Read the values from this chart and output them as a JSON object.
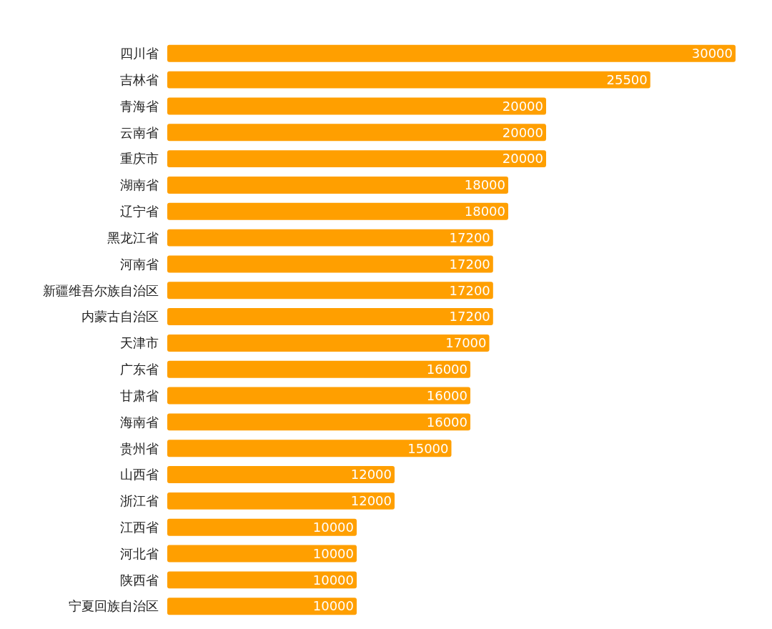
{
  "chart_data": {
    "type": "bar",
    "orientation": "horizontal",
    "categories": [
      "四川省",
      "吉林省",
      "青海省",
      "云南省",
      "重庆市",
      "湖南省",
      "辽宁省",
      "黑龙江省",
      "河南省",
      "新疆维吾尔族自治区",
      "内蒙古自治区",
      "天津市",
      "广东省",
      "甘肃省",
      "海南省",
      "贵州省",
      "山西省",
      "浙江省",
      "江西省",
      "河北省",
      "陕西省",
      "宁夏回族自治区"
    ],
    "values": [
      30000,
      25500,
      20000,
      20000,
      20000,
      18000,
      18000,
      17200,
      17200,
      17200,
      17200,
      17000,
      16000,
      16000,
      16000,
      15000,
      12000,
      12000,
      10000,
      10000,
      10000,
      10000
    ],
    "color": "#ff9f00",
    "data_labels": true
  }
}
